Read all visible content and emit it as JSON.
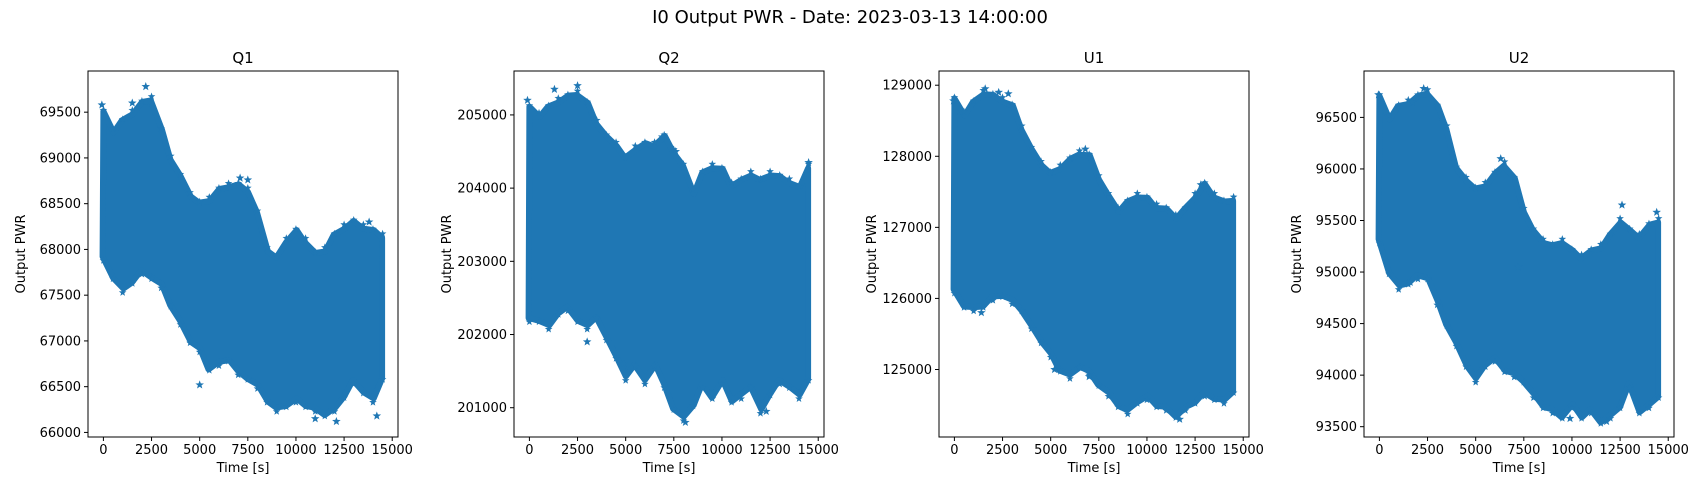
{
  "figure": {
    "title": "I0 Output PWR - Date: 2023-03-13 14:00:00",
    "marker_color": "#1f77b4"
  },
  "chart_data": [
    {
      "type": "scatter",
      "title": "Q1",
      "xlabel": "Time [s]",
      "ylabel": "Output PWR",
      "xlim": [
        -800,
        15300
      ],
      "ylim": [
        65950,
        69950
      ],
      "xticks": [
        0,
        2500,
        5000,
        7500,
        10000,
        12500,
        15000
      ],
      "yticks": [
        66000,
        66500,
        67000,
        67500,
        68000,
        68500,
        69000,
        69500
      ],
      "marker": "star",
      "series": [
        {
          "x": [
            0,
            500,
            1000,
            1500,
            2000,
            2500,
            3000,
            3500,
            4000,
            4500,
            5000,
            5500,
            6000,
            6500,
            7000,
            7500,
            8000,
            8500,
            9000,
            9500,
            10000,
            10500,
            11000,
            11500,
            12000,
            12500,
            13000,
            13500,
            14000,
            14500
          ],
          "upper": [
            69500,
            69300,
            69400,
            69500,
            69600,
            69650,
            69300,
            69000,
            68800,
            68600,
            68500,
            68550,
            68650,
            68700,
            68700,
            68650,
            68400,
            68000,
            67900,
            68100,
            68200,
            68100,
            67950,
            68000,
            68150,
            68250,
            68300,
            68250,
            68200,
            68150
          ],
          "lower": [
            67900,
            67700,
            67550,
            67650,
            67750,
            67700,
            67600,
            67400,
            67200,
            67000,
            66900,
            66700,
            66750,
            66800,
            66650,
            66600,
            66500,
            66350,
            66250,
            66300,
            66350,
            66300,
            66250,
            66200,
            66250,
            66400,
            66550,
            66450,
            66350,
            66600
          ]
        }
      ],
      "outliers": [
        [
          -80,
          69580
        ],
        [
          1500,
          69600
        ],
        [
          2200,
          69780
        ],
        [
          7100,
          68780
        ],
        [
          7500,
          68760
        ],
        [
          5000,
          66520
        ],
        [
          11000,
          66150
        ],
        [
          12100,
          66120
        ],
        [
          13800,
          68300
        ],
        [
          14200,
          66180
        ]
      ]
    },
    {
      "type": "scatter",
      "title": "Q2",
      "xlabel": "Time [s]",
      "ylabel": "Output PWR",
      "xlim": [
        -800,
        15300
      ],
      "ylim": [
        200600,
        205600
      ],
      "xticks": [
        0,
        2500,
        5000,
        7500,
        10000,
        12500,
        15000
      ],
      "yticks": [
        201000,
        202000,
        203000,
        204000,
        205000
      ],
      "marker": "star",
      "series": [
        {
          "x": [
            0,
            500,
            1000,
            1500,
            2000,
            2500,
            3000,
            3500,
            4000,
            4500,
            5000,
            5500,
            6000,
            6500,
            7000,
            7500,
            8000,
            8500,
            9000,
            9500,
            10000,
            10500,
            11000,
            11500,
            12000,
            12500,
            13000,
            13500,
            14000,
            14500
          ],
          "upper": [
            205100,
            205000,
            205100,
            205200,
            205250,
            205300,
            205150,
            204900,
            204700,
            204600,
            204400,
            204550,
            204600,
            204600,
            204700,
            204500,
            204300,
            203950,
            204200,
            204300,
            204250,
            204050,
            204100,
            204200,
            204100,
            204200,
            204150,
            204100,
            204000,
            204300
          ],
          "lower": [
            202200,
            202200,
            202100,
            202300,
            202350,
            202200,
            202100,
            202250,
            201950,
            201700,
            201400,
            201600,
            201350,
            201600,
            201300,
            201000,
            200850,
            201050,
            201300,
            201150,
            201350,
            201100,
            201150,
            201300,
            200950,
            201200,
            201350,
            201300,
            201150,
            201400
          ]
        }
      ],
      "outliers": [
        [
          -100,
          205200
        ],
        [
          1300,
          205350
        ],
        [
          2500,
          205400
        ],
        [
          6900,
          204700
        ],
        [
          7600,
          204500
        ],
        [
          4900,
          201600
        ],
        [
          8100,
          200800
        ],
        [
          12300,
          200950
        ],
        [
          14500,
          204350
        ],
        [
          3000,
          201900
        ]
      ]
    },
    {
      "type": "scatter",
      "title": "U1",
      "xlabel": "Time [s]",
      "ylabel": "Output PWR",
      "xlim": [
        -800,
        15300
      ],
      "ylim": [
        124050,
        129200
      ],
      "xticks": [
        0,
        2500,
        5000,
        7500,
        10000,
        12500,
        15000
      ],
      "yticks": [
        125000,
        126000,
        127000,
        128000,
        129000
      ],
      "marker": "star",
      "series": [
        {
          "x": [
            0,
            500,
            1000,
            1500,
            2000,
            2500,
            3000,
            3500,
            4000,
            4500,
            5000,
            5500,
            6000,
            6500,
            7000,
            7500,
            8000,
            8500,
            9000,
            9500,
            10000,
            10500,
            11000,
            11500,
            12000,
            12500,
            13000,
            13500,
            14000,
            14500
          ],
          "upper": [
            128800,
            128600,
            128750,
            128900,
            128850,
            128800,
            128700,
            128400,
            128100,
            127900,
            127750,
            127850,
            127950,
            128050,
            128000,
            127700,
            127450,
            127250,
            127350,
            127450,
            127400,
            127300,
            127250,
            127150,
            127250,
            127450,
            127600,
            127450,
            127350,
            127400
          ],
          "lower": [
            126100,
            125900,
            125850,
            125900,
            126000,
            126050,
            125950,
            125850,
            125600,
            125400,
            125200,
            125000,
            124900,
            125050,
            124950,
            124800,
            124650,
            124500,
            124400,
            124550,
            124600,
            124500,
            124450,
            124350,
            124450,
            124550,
            124650,
            124600,
            124550,
            124700
          ]
        }
      ],
      "outliers": [
        [
          -50,
          128780
        ],
        [
          1600,
          128950
        ],
        [
          2300,
          128900
        ],
        [
          2800,
          128880
        ],
        [
          6800,
          128100
        ],
        [
          12800,
          127600
        ],
        [
          1400,
          125800
        ],
        [
          5200,
          125000
        ],
        [
          11700,
          124300
        ],
        [
          7000,
          124900
        ]
      ]
    },
    {
      "type": "scatter",
      "title": "U2",
      "xlabel": "Time [s]",
      "ylabel": "Output PWR",
      "xlim": [
        -800,
        15300
      ],
      "ylim": [
        93400,
        96950
      ],
      "xticks": [
        0,
        2500,
        5000,
        7500,
        10000,
        12500,
        15000
      ],
      "yticks": [
        93500,
        94000,
        94500,
        95000,
        95500,
        96000,
        96500
      ],
      "marker": "star",
      "series": [
        {
          "x": [
            0,
            500,
            1000,
            1500,
            2000,
            2500,
            3000,
            3500,
            4000,
            4500,
            5000,
            5500,
            6000,
            6500,
            7000,
            7500,
            8000,
            8500,
            9000,
            9500,
            10000,
            10500,
            11000,
            11500,
            12000,
            12500,
            13000,
            13500,
            14000,
            14500
          ],
          "upper": [
            96700,
            96500,
            96600,
            96650,
            96700,
            96750,
            96600,
            96400,
            96000,
            95900,
            95800,
            95850,
            95950,
            96050,
            95900,
            95600,
            95400,
            95300,
            95250,
            95300,
            95200,
            95150,
            95200,
            95250,
            95350,
            95500,
            95400,
            95350,
            95450,
            95500
          ],
          "lower": [
            95300,
            95000,
            94850,
            94900,
            94950,
            94950,
            94700,
            94500,
            94300,
            94100,
            93950,
            94100,
            94150,
            94050,
            94000,
            93950,
            93800,
            93700,
            93650,
            93600,
            93700,
            93600,
            93650,
            93550,
            93600,
            93700,
            93900,
            93650,
            93700,
            93800
          ]
        }
      ],
      "outliers": [
        [
          -50,
          96720
        ],
        [
          1700,
          96650
        ],
        [
          2300,
          96780
        ],
        [
          6300,
          96100
        ],
        [
          12600,
          95650
        ],
        [
          14400,
          95580
        ],
        [
          1600,
          94900
        ],
        [
          7200,
          95050
        ],
        [
          11800,
          93550
        ],
        [
          9900,
          93580
        ]
      ]
    }
  ]
}
